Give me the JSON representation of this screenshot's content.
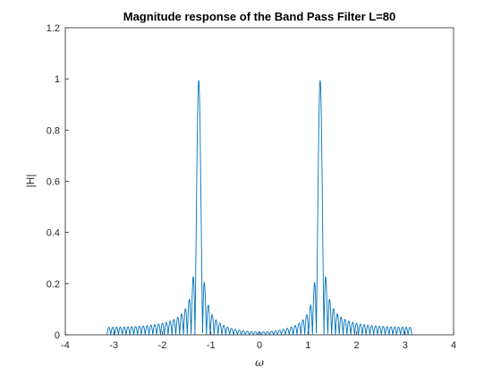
{
  "chart_data": {
    "type": "line",
    "title": "Magnitude response of the Band Pass Filter L=80",
    "xlabel": "ω",
    "ylabel": "|H|",
    "xlim": [
      -4,
      4
    ],
    "ylim": [
      0,
      1.2
    ],
    "x_ticks": [
      -4,
      -3,
      -2,
      -1,
      0,
      1,
      2,
      3,
      4
    ],
    "y_ticks": [
      0,
      0.2,
      0.4,
      0.6,
      0.8,
      1,
      1.2
    ],
    "x_tick_labels": [
      "-4",
      "-3",
      "-2",
      "-1",
      "0",
      "1",
      "2",
      "3",
      "4"
    ],
    "y_tick_labels": [
      "0",
      "0.2",
      "0.4",
      "0.6",
      "0.8",
      "1",
      "1.2"
    ],
    "grid": false,
    "series": [
      {
        "filter_length": 80,
        "center_frequencies": [
          -1.25,
          1.25
        ],
        "x_range": [
          -3.14159,
          3.14159
        ],
        "peak_value": 1.0,
        "side_lobe_peak": 0.22
      }
    ],
    "colors": {
      "line": "#0072BD",
      "axes": "#262626",
      "background": "#ffffff"
    }
  }
}
